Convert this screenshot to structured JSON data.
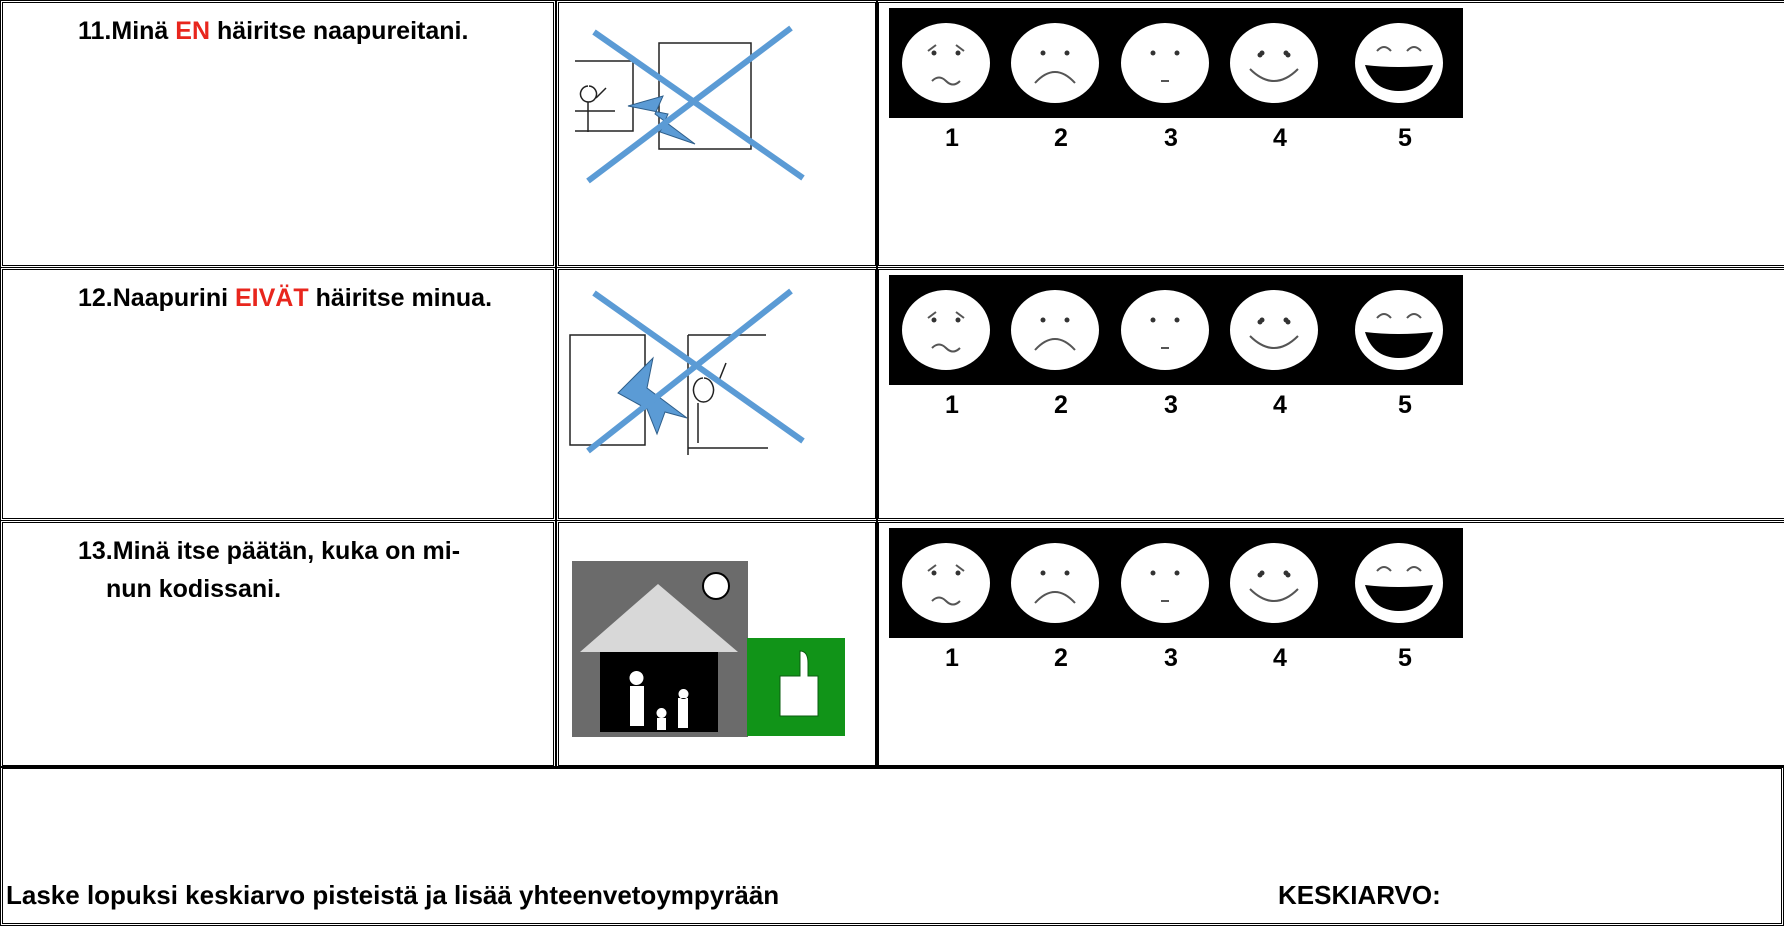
{
  "rows": [
    {
      "lines": [
        [
          {
            "text": "11.Minä "
          },
          {
            "text": "EN",
            "emphasis": true
          },
          {
            "text": " häiritse naapureitani."
          }
        ]
      ],
      "scale": [
        1,
        2,
        3,
        4,
        5
      ]
    },
    {
      "lines": [
        [
          {
            "text": "12.Naapurini "
          },
          {
            "text": "EIVÄT",
            "emphasis": true
          },
          {
            "text": " häiritse minua."
          }
        ]
      ],
      "scale": [
        1,
        2,
        3,
        4,
        5
      ]
    },
    {
      "lines": [
        [
          {
            "text": "13.Minä itse päätän, kuka on mi-"
          }
        ],
        [
          {
            "text": "nun kodissani."
          }
        ]
      ],
      "scale": [
        1,
        2,
        3,
        4,
        5
      ]
    }
  ],
  "footer": {
    "instruction": "Laske lopuksi keskiarvo pisteistä ja lisää yhteenvetoympyrään",
    "average_label": "KESKIARVO:"
  }
}
